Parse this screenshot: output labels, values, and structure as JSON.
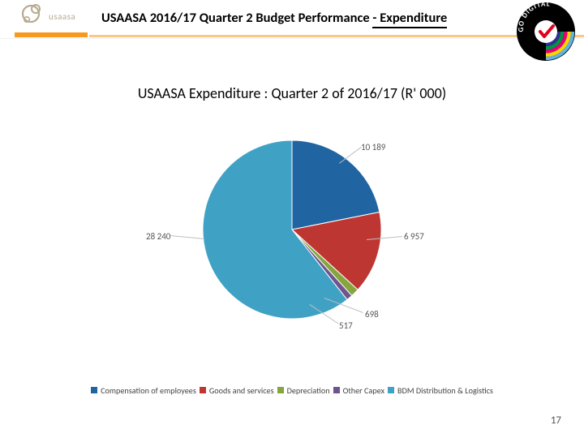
{
  "header": {
    "logo_text": "usaasa",
    "title_prefix": "USAASA 2016/17 Quarter 2 Budget Performance ",
    "title_suffix": "- Expenditure"
  },
  "go_digital": {
    "outer_color": "#000000",
    "tick_bg": "#ffffff",
    "tick_color": "#e2001a",
    "band_colors": [
      "#5fb4e5",
      "#ffd400",
      "#e6007e",
      "#009640",
      "#2e3192"
    ],
    "text": "GO DIGITAL",
    "text_color": "#ffffff"
  },
  "chart": {
    "title": "USAASA Expenditure : Quarter 2 of 2016/17 (R' 000)",
    "title_fontsize": 18,
    "type": "pie",
    "background_color": "#ffffff",
    "radius": 110,
    "start_angle_deg": -90,
    "direction": "clockwise",
    "slices": [
      {
        "label": "Compensation of employees",
        "value": 10189,
        "color": "#2064a2",
        "callout_text": "10 189"
      },
      {
        "label": "Goods and services",
        "value": 6957,
        "color": "#bd3632",
        "callout_text": "6 957"
      },
      {
        "label": "Depreciation",
        "value": 698,
        "color": "#85a53e",
        "callout_text": "698"
      },
      {
        "label": "Other Capex",
        "value": 517,
        "color": "#6f548e",
        "callout_text": "517"
      },
      {
        "label": "BDM Distribution & Logistics",
        "value": 28240,
        "color": "#3fa2c4",
        "callout_text": "28 240"
      }
    ],
    "legend_items": [
      {
        "label": "Compensation of employees",
        "swatch": "#2064a2"
      },
      {
        "label": "Goods and services",
        "swatch": "#bd3632"
      },
      {
        "label": "Depreciation",
        "swatch": "#85a53e"
      },
      {
        "label": "Other Capex",
        "swatch": "#6f548e"
      },
      {
        "label": "BDM Distribution & Logistics",
        "swatch": "#3fa2c4"
      }
    ],
    "callout_line_color": "#bfbfbf",
    "callout_fontsize": 11,
    "callout_color": "#555555"
  },
  "logo": {
    "ring_color": "#b7ab8f",
    "text_color": "#b7ab8f",
    "strap_color": "#f59a1e"
  },
  "page_number": "17"
}
